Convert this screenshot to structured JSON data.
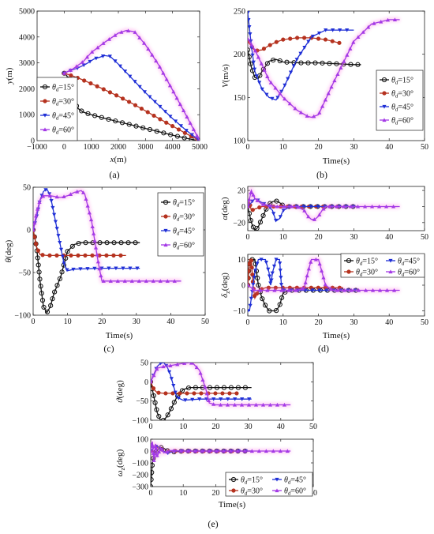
{
  "captions": [
    "(a)",
    "(b)",
    "(c)",
    "(d)",
    "(e)"
  ],
  "colors": {
    "s15": "#111111",
    "s30": "#b5321f",
    "s45": "#1f2fd6",
    "s60": "#a43ae6",
    "glow": "#ff66dd"
  },
  "chart_data": [
    {
      "id": "a",
      "type": "line",
      "xlabel": "x(m)",
      "ylabel": "y(m)",
      "xlim": [
        -1000,
        5000
      ],
      "ylim": [
        0,
        5000
      ],
      "xticks": [
        "−1000",
        "0",
        "1000",
        "2000",
        "3000",
        "4000",
        "5000"
      ],
      "yticks": [
        "0",
        "1000",
        "2000",
        "3000",
        "4000",
        "5000"
      ],
      "legend_labels": [
        "θd=15°",
        "θd=30°",
        "θd=45°",
        "θd=60°"
      ],
      "legend_position": "left",
      "series": [
        {
          "name": "θd=15°",
          "x": [
            0,
            100,
            200,
            300,
            400,
            500,
            700,
            1000,
            1500,
            2000,
            2500,
            3000,
            3500,
            4000,
            4500,
            4800,
            5000
          ],
          "y": [
            2600,
            2500,
            2200,
            1800,
            1450,
            1250,
            1100,
            1000,
            860,
            730,
            600,
            470,
            340,
            210,
            90,
            30,
            0
          ]
        },
        {
          "name": "θd=30°",
          "x": [
            0,
            300,
            600,
            1000,
            1500,
            2000,
            2500,
            3000,
            3500,
            4000,
            4500,
            5000
          ],
          "y": [
            2600,
            2500,
            2380,
            2200,
            1960,
            1710,
            1440,
            1150,
            850,
            560,
            270,
            0
          ]
        },
        {
          "name": "θd=45°",
          "x": [
            0,
            200,
            500,
            800,
            1100,
            1500,
            1700,
            2000,
            2500,
            3000,
            3500,
            4000,
            4500,
            5000
          ],
          "y": [
            2600,
            2700,
            2800,
            2950,
            3150,
            3280,
            3250,
            2950,
            2400,
            1850,
            1350,
            850,
            400,
            0
          ]
        },
        {
          "name": "θd=60°",
          "x": [
            0,
            300,
            700,
            1000,
            1500,
            2000,
            2300,
            2600,
            3000,
            3500,
            4000,
            4500,
            5000
          ],
          "y": [
            2600,
            2750,
            3050,
            3400,
            3800,
            4150,
            4250,
            4200,
            3700,
            2900,
            1950,
            980,
            0
          ]
        }
      ]
    },
    {
      "id": "b",
      "type": "line",
      "xlabel": "Time(s)",
      "ylabel": "V(m/s)",
      "xlim": [
        0,
        50
      ],
      "ylim": [
        100,
        250
      ],
      "xticks": [
        "0",
        "10",
        "20",
        "30",
        "40",
        "50"
      ],
      "yticks": [
        "100",
        "150",
        "200",
        "250"
      ],
      "legend_labels": [
        "θd=15°",
        "θd=30°",
        "θd=45°",
        "θd=60°"
      ],
      "legend_position": "right",
      "series": [
        {
          "name": "θd=15°",
          "x": [
            0,
            1,
            2,
            3,
            4,
            6,
            8,
            10,
            15,
            20,
            25,
            30,
            32
          ],
          "y": [
            205,
            185,
            173,
            172,
            180,
            192,
            194,
            191,
            190,
            190,
            189,
            188,
            188
          ]
        },
        {
          "name": "θd=30°",
          "x": [
            0,
            2,
            4,
            6,
            8,
            10,
            14,
            18,
            22,
            26
          ],
          "y": [
            215,
            204,
            205,
            210,
            214,
            217,
            219,
            219,
            217,
            213
          ]
        },
        {
          "name": "θd=45°",
          "x": [
            0,
            1,
            2,
            4,
            6,
            8,
            10,
            14,
            18,
            22,
            26,
            30
          ],
          "y": [
            248,
            210,
            180,
            160,
            150,
            147,
            160,
            195,
            220,
            228,
            228,
            228
          ]
        },
        {
          "name": "θd=60°",
          "x": [
            0,
            2,
            4,
            6,
            10,
            14,
            17,
            18,
            20,
            24,
            30,
            35,
            40,
            43
          ],
          "y": [
            218,
            205,
            188,
            170,
            150,
            135,
            128,
            127,
            130,
            165,
            215,
            235,
            240,
            240
          ]
        }
      ]
    },
    {
      "id": "c",
      "type": "line",
      "xlabel": "Time(s)",
      "ylabel": "θ(deg)",
      "xlim": [
        0,
        50
      ],
      "ylim": [
        -100,
        50
      ],
      "xticks": [
        "0",
        "10",
        "20",
        "30",
        "40",
        "50"
      ],
      "yticks": [
        "−100",
        "−50",
        "0",
        "50"
      ],
      "legend_labels": [
        "θd=15°",
        "θd=30°",
        "θd=45°",
        "θd=60°"
      ],
      "legend_position": "top-right",
      "series": [
        {
          "name": "θd=15°",
          "x": [
            0,
            1,
            2,
            3,
            4,
            5,
            6,
            8,
            9,
            10,
            12,
            14,
            20,
            31
          ],
          "y": [
            0,
            -20,
            -60,
            -90,
            -97,
            -90,
            -75,
            -55,
            -40,
            -25,
            -17,
            -15,
            -15,
            -15
          ]
        },
        {
          "name": "θd=30°",
          "x": [
            0,
            1,
            2,
            4,
            8,
            15,
            20,
            27
          ],
          "y": [
            0,
            -20,
            -29,
            -30,
            -30,
            -30,
            -30,
            -30
          ]
        },
        {
          "name": "θd=45°",
          "x": [
            0,
            1,
            2,
            3,
            4,
            5,
            6,
            7,
            8,
            9,
            10,
            12,
            20,
            31
          ],
          "y": [
            0,
            15,
            35,
            45,
            48,
            40,
            20,
            0,
            -20,
            -40,
            -48,
            -46,
            -45,
            -45
          ]
        },
        {
          "name": "θd=60°",
          "x": [
            0,
            1,
            2,
            3,
            5,
            8,
            10,
            12,
            14,
            15,
            17,
            19,
            20,
            22,
            25,
            30,
            43
          ],
          "y": [
            0,
            20,
            35,
            40,
            40,
            38,
            40,
            44,
            46,
            42,
            10,
            -40,
            -60,
            -60,
            -60,
            -60,
            -60
          ]
        }
      ]
    },
    {
      "id": "d_top",
      "type": "line",
      "xlabel": "",
      "ylabel": "α(deg)",
      "xlim": [
        0,
        50
      ],
      "ylim": [
        -30,
        25
      ],
      "xticks": [
        "0",
        "10",
        "20",
        "30",
        "40",
        "50"
      ],
      "yticks": [
        "−20",
        "0",
        "20"
      ],
      "series": [
        {
          "name": "θd=15°",
          "x": [
            0,
            1,
            2,
            3,
            4,
            5,
            6,
            7,
            8,
            9,
            10,
            11,
            15,
            31
          ],
          "y": [
            0,
            -20,
            -30,
            -25,
            -15,
            -5,
            3,
            6,
            7,
            5,
            1,
            0,
            0,
            0
          ]
        },
        {
          "name": "θd=30°",
          "x": [
            0,
            0.5,
            1,
            2,
            4,
            27
          ],
          "y": [
            0,
            5,
            -5,
            -3,
            0,
            0
          ]
        },
        {
          "name": "θd=45°",
          "x": [
            0,
            1,
            2,
            4,
            6,
            7,
            8,
            9,
            10,
            12,
            31
          ],
          "y": [
            0,
            5,
            10,
            5,
            0,
            -5,
            -18,
            -15,
            -5,
            0,
            0
          ]
        },
        {
          "name": "θd=60°",
          "x": [
            0,
            1,
            2,
            4,
            8,
            14,
            16,
            17,
            18,
            19,
            20,
            21,
            22,
            25,
            43
          ],
          "y": [
            0,
            20,
            10,
            3,
            0,
            0,
            -5,
            -12,
            -16,
            -16,
            -12,
            -5,
            0,
            0,
            0
          ]
        }
      ]
    },
    {
      "id": "d_bottom",
      "type": "line",
      "xlabel": "Time(s)",
      "ylabel": "δz(deg)",
      "xlim": [
        0,
        50
      ],
      "ylim": [
        -12,
        12
      ],
      "xticks": [
        "0",
        "10",
        "20",
        "30",
        "40",
        "50"
      ],
      "yticks": [
        "−10",
        "0",
        "10"
      ],
      "legend_labels": [
        "θd=15°",
        "θd=45°",
        "θd=30°",
        "θd=60°"
      ],
      "legend_position": "top-right",
      "series": [
        {
          "name": "θd=15°",
          "x": [
            0,
            0.5,
            1,
            2,
            2.5,
            3,
            4,
            5,
            6,
            7,
            8,
            9,
            10,
            12,
            31
          ],
          "y": [
            0,
            10,
            10,
            10,
            5,
            0,
            -5,
            -8,
            -10,
            -10,
            -10,
            -8,
            -3,
            -2,
            -2
          ]
        },
        {
          "name": "θd=30°",
          "x": [
            0,
            0.5,
            1,
            1.5,
            2,
            3,
            5,
            27
          ],
          "y": [
            0,
            10,
            10,
            0,
            -5,
            -2,
            -1,
            -1
          ]
        },
        {
          "name": "θd=45°",
          "x": [
            0,
            0.5,
            1,
            1.5,
            2,
            3,
            4,
            5,
            6,
            6.5,
            7,
            8,
            9,
            9.5,
            10,
            31
          ],
          "y": [
            -10,
            -10,
            -5,
            0,
            5,
            10,
            10,
            10,
            5,
            0,
            5,
            10,
            10,
            0,
            -2,
            -2
          ]
        },
        {
          "name": "θd=60°",
          "x": [
            0,
            2,
            5,
            10,
            14,
            16,
            17,
            18,
            20,
            21,
            22,
            24,
            43
          ],
          "y": [
            0,
            -2,
            -2,
            -2,
            -2,
            -1,
            5,
            10,
            10,
            5,
            0,
            -2,
            -2
          ]
        }
      ]
    },
    {
      "id": "e_top",
      "type": "line",
      "xlabel": "",
      "ylabel": "ϑ(deg)",
      "xlim": [
        0,
        50
      ],
      "ylim": [
        -100,
        50
      ],
      "xticks": [
        "0",
        "10",
        "20",
        "30",
        "40",
        "50"
      ],
      "yticks": [
        "−100",
        "−50",
        "0",
        "50"
      ],
      "series": [
        {
          "name": "θd=15°",
          "x": [
            0,
            1,
            2,
            3,
            4,
            5,
            6,
            8,
            10,
            12,
            15,
            31
          ],
          "y": [
            0,
            -40,
            -80,
            -100,
            -100,
            -90,
            -75,
            -40,
            -20,
            -15,
            -15,
            -15
          ]
        },
        {
          "name": "θd=30°",
          "x": [
            0,
            1,
            2,
            4,
            10,
            20,
            27
          ],
          "y": [
            0,
            -20,
            -28,
            -30,
            -30,
            -30,
            -30
          ]
        },
        {
          "name": "θd=45°",
          "x": [
            0,
            1,
            2,
            3,
            4,
            5,
            6,
            7,
            8,
            10,
            15,
            31
          ],
          "y": [
            0,
            20,
            40,
            48,
            50,
            40,
            20,
            -10,
            -40,
            -48,
            -45,
            -45
          ]
        },
        {
          "name": "θd=60°",
          "x": [
            0,
            2,
            4,
            6,
            8,
            10,
            12,
            13,
            15,
            17,
            18,
            20,
            25,
            43
          ],
          "y": [
            0,
            35,
            40,
            42,
            45,
            48,
            50,
            48,
            30,
            -20,
            -55,
            -60,
            -60,
            -60
          ]
        }
      ]
    },
    {
      "id": "e_bottom",
      "type": "line",
      "xlabel": "Time(s)",
      "ylabel": "ωz(deg)",
      "xlim": [
        0,
        50
      ],
      "ylim": [
        -300,
        100
      ],
      "xticks": [
        "0",
        "10",
        "20",
        "30",
        "40",
        "50"
      ],
      "yticks": [
        "−300",
        "−200",
        "−100",
        "0",
        "100"
      ],
      "legend_labels": [
        "θd=15°",
        "θd=45°",
        "θd=30°",
        "θd=60°"
      ],
      "legend_position": "bottom-right",
      "series": [
        {
          "name": "θd=15°",
          "x": [
            0,
            0.5,
            1,
            2,
            3,
            4,
            5,
            6,
            8,
            10,
            31
          ],
          "y": [
            -300,
            -100,
            -30,
            10,
            30,
            25,
            5,
            -10,
            -5,
            0,
            0
          ]
        },
        {
          "name": "θd=30°",
          "x": [
            0,
            1,
            2,
            3,
            4,
            5,
            6,
            27
          ],
          "y": [
            0,
            30,
            40,
            25,
            0,
            -10,
            0,
            0
          ]
        },
        {
          "name": "θd=45°",
          "x": [
            0,
            1,
            2,
            3,
            4,
            5,
            6,
            8,
            31
          ],
          "y": [
            0,
            30,
            40,
            20,
            0,
            -20,
            -10,
            0,
            0
          ]
        },
        {
          "name": "θd=60°",
          "x": [
            0,
            0.5,
            1,
            1.5,
            2,
            3,
            4,
            6,
            10,
            20,
            43
          ],
          "y": [
            0,
            80,
            -80,
            60,
            -50,
            30,
            -15,
            5,
            0,
            0,
            0
          ]
        }
      ]
    }
  ]
}
